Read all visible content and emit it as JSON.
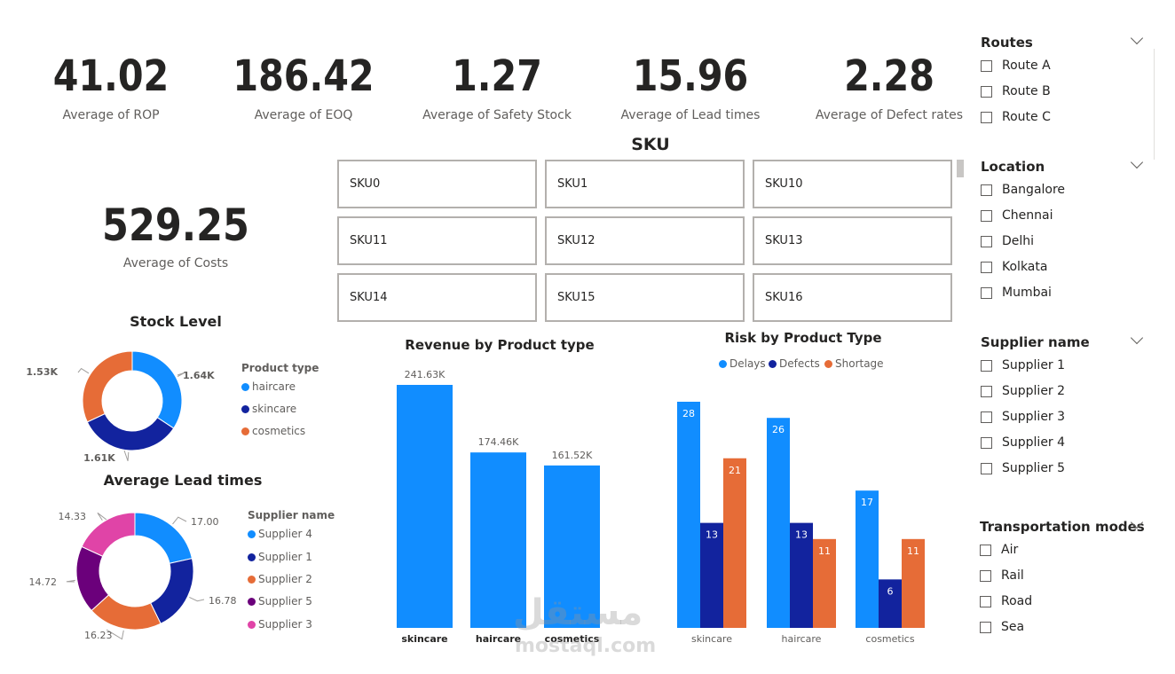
{
  "kpis": [
    {
      "value": "41.02",
      "label": "Average of ROP"
    },
    {
      "value": "186.42",
      "label": "Average of EOQ"
    },
    {
      "value": "1.27",
      "label": "Average of Safety Stock"
    },
    {
      "value": "15.96",
      "label": "Average of Lead times"
    },
    {
      "value": "2.28",
      "label": "Average of Defect rates"
    }
  ],
  "costs": {
    "value": "529.25",
    "label": "Average of Costs"
  },
  "sku": {
    "title": "SKU",
    "items": [
      "SKU0",
      "SKU1",
      "SKU10",
      "SKU11",
      "SKU12",
      "SKU13",
      "SKU14",
      "SKU15",
      "SKU16"
    ]
  },
  "slicers": {
    "routes": {
      "title": "Routes",
      "options": [
        "Route A",
        "Route B",
        "Route C"
      ]
    },
    "location": {
      "title": "Location",
      "options": [
        "Bangalore",
        "Chennai",
        "Delhi",
        "Kolkata",
        "Mumbai"
      ]
    },
    "supplier": {
      "title": "Supplier name",
      "options": [
        "Supplier 1",
        "Supplier 2",
        "Supplier 3",
        "Supplier 4",
        "Supplier 5"
      ]
    },
    "transport": {
      "title": "Transportation modes",
      "options": [
        "Air",
        "Rail",
        "Road",
        "Sea"
      ]
    }
  },
  "chart_data": [
    {
      "type": "pie",
      "variant": "donut",
      "title": "Stock Level",
      "legend_title": "Product type",
      "legend_position": "right",
      "categories": [
        "haircare",
        "skincare",
        "cosmetics"
      ],
      "values": [
        1.64,
        1.61,
        1.53
      ],
      "labels": [
        "1.64K",
        "1.61K",
        "1.53K"
      ],
      "colors": [
        "#118dff",
        "#12239e",
        "#e66c37"
      ]
    },
    {
      "type": "pie",
      "variant": "donut",
      "title": "Average Lead times",
      "legend_title": "Supplier name",
      "legend_position": "right",
      "categories": [
        "Supplier 4",
        "Supplier 1",
        "Supplier 2",
        "Supplier 5",
        "Supplier 3"
      ],
      "values": [
        17.0,
        16.78,
        16.23,
        14.72,
        14.33
      ],
      "labels": [
        "17.00",
        "16.78",
        "16.23",
        "14.72",
        "14.33"
      ],
      "colors": [
        "#118dff",
        "#12239e",
        "#e66c37",
        "#6b007b",
        "#e044a7"
      ]
    },
    {
      "type": "bar",
      "title": "Revenue by Product type",
      "categories": [
        "skincare",
        "haircare",
        "cosmetics"
      ],
      "values": [
        241.63,
        174.46,
        161.52
      ],
      "labels": [
        "241.63K",
        "174.46K",
        "161.52K"
      ],
      "color": "#118dff",
      "ylim": [
        0,
        241.63
      ]
    },
    {
      "type": "bar",
      "title": "Risk by Product Type",
      "legend_position": "top",
      "categories": [
        "skincare",
        "haircare",
        "cosmetics"
      ],
      "series": [
        {
          "name": "Delays",
          "values": [
            28,
            26,
            17
          ],
          "color": "#118dff"
        },
        {
          "name": "Defects",
          "values": [
            13,
            13,
            6
          ],
          "color": "#12239e"
        },
        {
          "name": "Shortage",
          "values": [
            21,
            11,
            11
          ],
          "color": "#e66c37"
        }
      ],
      "ylim": [
        0,
        28
      ]
    }
  ],
  "watermark": {
    "line1": "مستقل",
    "line2": "mostaql.com"
  }
}
